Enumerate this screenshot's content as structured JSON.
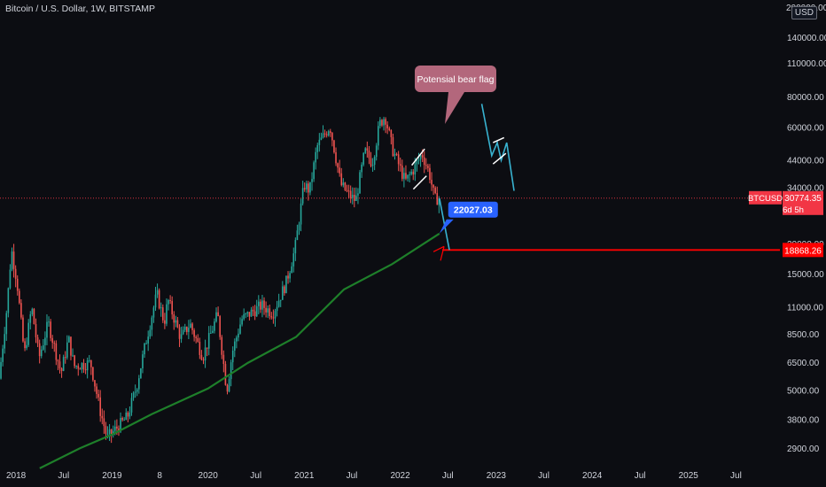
{
  "header": {
    "title": "Bitcoin / U.S. Dollar, 1W, BITSTAMP",
    "currency_badge": "USD"
  },
  "chart_data": {
    "type": "candlestick",
    "title": "Bitcoin / U.S. Dollar, 1W, BITSTAMP",
    "y_scale": "log",
    "ylim": [
      2500,
      200000
    ],
    "xlim": [
      "2017-11-01",
      "2025-12-15"
    ],
    "y_ticks": [
      "140000.00",
      "110000.00",
      "80000.00",
      "60000.00",
      "44000.00",
      "34000.00",
      "20000.00",
      "15000.00",
      "11000.00",
      "8500.00",
      "6500.00",
      "5000.00",
      "3800.00",
      "2900.00"
    ],
    "y_tick_values": [
      140000,
      110000,
      80000,
      60000,
      44000,
      34000,
      20000,
      15000,
      11000,
      8500,
      6500,
      5000,
      3800,
      2900
    ],
    "y_top_label": "200000.00",
    "x_ticks": [
      {
        "label": "2018",
        "date": "2018-01-01"
      },
      {
        "label": "Jul",
        "date": "2018-07-01"
      },
      {
        "label": "2019",
        "date": "2019-01-01"
      },
      {
        "label": "8",
        "date": "2019-07-01"
      },
      {
        "label": "2020",
        "date": "2020-01-01"
      },
      {
        "label": "Jul",
        "date": "2020-07-01"
      },
      {
        "label": "2021",
        "date": "2021-01-01"
      },
      {
        "label": "Jul",
        "date": "2021-07-01"
      },
      {
        "label": "2022",
        "date": "2022-01-01"
      },
      {
        "label": "Jul",
        "date": "2022-07-01"
      },
      {
        "label": "2023",
        "date": "2023-01-01"
      },
      {
        "label": "Jul",
        "date": "2023-07-01"
      },
      {
        "label": "2024",
        "date": "2024-01-01"
      },
      {
        "label": "Jul",
        "date": "2024-07-01"
      },
      {
        "label": "2025",
        "date": "2025-01-01"
      },
      {
        "label": "Jul",
        "date": "2025-07-01"
      }
    ],
    "price_path": [
      [
        "2017-11-01",
        5600
      ],
      [
        "2017-12-01",
        11000
      ],
      [
        "2017-12-18",
        19000
      ],
      [
        "2018-01-08",
        14000
      ],
      [
        "2018-02-05",
        7000
      ],
      [
        "2018-03-05",
        11000
      ],
      [
        "2018-04-02",
        6800
      ],
      [
        "2018-05-07",
        9500
      ],
      [
        "2018-06-25",
        5900
      ],
      [
        "2018-07-23",
        8200
      ],
      [
        "2018-08-13",
        6300
      ],
      [
        "2018-10-15",
        6500
      ],
      [
        "2018-11-19",
        4200
      ],
      [
        "2018-12-17",
        3200
      ],
      [
        "2019-01-21",
        3500
      ],
      [
        "2019-03-04",
        3900
      ],
      [
        "2019-04-08",
        5200
      ],
      [
        "2019-05-13",
        7900
      ],
      [
        "2019-06-24",
        12500
      ],
      [
        "2019-07-22",
        9500
      ],
      [
        "2019-08-05",
        11800
      ],
      [
        "2019-09-23",
        8200
      ],
      [
        "2019-10-28",
        9400
      ],
      [
        "2019-12-16",
        6900
      ],
      [
        "2020-02-10",
        10300
      ],
      [
        "2020-03-16",
        5000
      ],
      [
        "2020-04-06",
        7200
      ],
      [
        "2020-05-11",
        9800
      ],
      [
        "2020-07-27",
        11200
      ],
      [
        "2020-09-07",
        10400
      ],
      [
        "2020-10-26",
        13700
      ],
      [
        "2020-11-30",
        19000
      ],
      [
        "2021-01-04",
        35000
      ],
      [
        "2021-01-25",
        33000
      ],
      [
        "2021-02-22",
        50000
      ],
      [
        "2021-04-12",
        61000
      ],
      [
        "2021-05-24",
        35000
      ],
      [
        "2021-06-21",
        32000
      ],
      [
        "2021-07-19",
        30000
      ],
      [
        "2021-08-23",
        48000
      ],
      [
        "2021-09-20",
        43000
      ],
      [
        "2021-10-18",
        62000
      ],
      [
        "2021-11-08",
        67000
      ],
      [
        "2021-12-06",
        49000
      ],
      [
        "2022-01-24",
        36000
      ],
      [
        "2022-02-28",
        41000
      ],
      [
        "2022-03-28",
        47000
      ],
      [
        "2022-04-25",
        39000
      ],
      [
        "2022-05-16",
        30500
      ],
      [
        "2022-05-30",
        30774
      ]
    ],
    "ma_series": {
      "name": "",
      "color": "#1e7f2a",
      "points": [
        [
          "2018-04-01",
          2400
        ],
        [
          "2018-09-01",
          2900
        ],
        [
          "2019-01-01",
          3300
        ],
        [
          "2019-06-01",
          4000
        ],
        [
          "2020-01-01",
          5100
        ],
        [
          "2020-06-01",
          6500
        ],
        [
          "2020-12-01",
          8300
        ],
        [
          "2021-06-01",
          13000
        ],
        [
          "2021-12-01",
          16500
        ],
        [
          "2022-05-30",
          22027
        ]
      ]
    },
    "projection_path": [
      [
        "2022-05-30",
        30774
      ],
      [
        "2022-07-07",
        18868
      ]
    ],
    "right_projection": [
      [
        "2022-11-07",
        75000
      ],
      [
        "2022-12-15",
        46000
      ],
      [
        "2023-01-05",
        52000
      ],
      [
        "2023-01-20",
        44000
      ],
      [
        "2023-02-10",
        52000
      ],
      [
        "2023-03-10",
        33000
      ]
    ],
    "flag_channel": {
      "upper": [
        [
          "2022-02-14",
          42000
        ],
        [
          "2022-04-04",
          49000
        ]
      ],
      "lower": [
        [
          "2022-02-20",
          33500
        ],
        [
          "2022-04-11",
          38000
        ]
      ]
    },
    "right_channel": {
      "upper": [
        [
          "2022-12-20",
          52000
        ],
        [
          "2023-01-31",
          54500
        ]
      ],
      "lower": [
        [
          "2022-12-20",
          42500
        ],
        [
          "2023-02-07",
          47000
        ]
      ]
    },
    "current_price": {
      "symbol": "BTCUSD",
      "value": "30774.35",
      "countdown": "6d 5h",
      "color": "#f23645",
      "num": 30774.35
    },
    "support_level": {
      "value": "18868.26",
      "num": 18868.26,
      "color": "#ff0000",
      "from": "2022-06-10"
    },
    "ma_label": {
      "value": "22027.03",
      "color": "#2962ff",
      "num": 22027.03,
      "date": "2022-05-30"
    },
    "annotation": {
      "text": "Potensial bear flag",
      "color": "#b3677c"
    },
    "colors": {
      "up": "#26a69a",
      "down": "#ef5350",
      "background": "#0c0d12",
      "text": "#d1d4dc"
    }
  }
}
